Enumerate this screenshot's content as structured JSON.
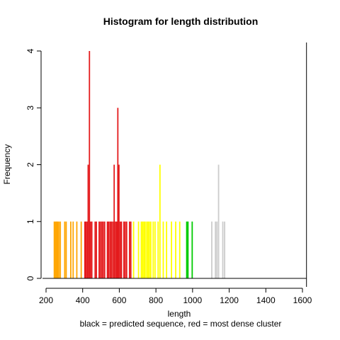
{
  "chart_data": {
    "type": "bar",
    "title": "Histogram for length distribution",
    "xlabel": "length",
    "ylabel": "Frequency",
    "subtitle": "black = predicted sequence, red = most dense cluster",
    "xlim": [
      200,
      1600
    ],
    "ylim": [
      0,
      4
    ],
    "x_ticks": [
      200,
      400,
      600,
      800,
      1000,
      1200,
      1400,
      1600
    ],
    "y_ticks": [
      0,
      1,
      2,
      3,
      4
    ],
    "colors": {
      "red": "#e41a1c",
      "orange": "#ffa500",
      "yellow": "#ffff00",
      "green": "#00cc00",
      "gray": "#cccccc",
      "black": "#000000"
    },
    "bars": [
      {
        "x": 245,
        "count": 1,
        "color": "orange"
      },
      {
        "x": 252,
        "count": 1,
        "color": "orange"
      },
      {
        "x": 258,
        "count": 1,
        "color": "orange"
      },
      {
        "x": 263,
        "count": 1,
        "color": "orange"
      },
      {
        "x": 270,
        "count": 1,
        "color": "orange"
      },
      {
        "x": 278,
        "count": 1,
        "color": "orange"
      },
      {
        "x": 302,
        "count": 1,
        "color": "orange"
      },
      {
        "x": 310,
        "count": 1,
        "color": "orange"
      },
      {
        "x": 335,
        "count": 1,
        "color": "orange"
      },
      {
        "x": 348,
        "count": 1,
        "color": "orange"
      },
      {
        "x": 368,
        "count": 1,
        "color": "orange"
      },
      {
        "x": 392,
        "count": 1,
        "color": "orange"
      },
      {
        "x": 412,
        "count": 1,
        "color": "red"
      },
      {
        "x": 418,
        "count": 1,
        "color": "red"
      },
      {
        "x": 425,
        "count": 1,
        "color": "red"
      },
      {
        "x": 430,
        "count": 2,
        "color": "red"
      },
      {
        "x": 437,
        "count": 4,
        "color": "red"
      },
      {
        "x": 443,
        "count": 1,
        "color": "red"
      },
      {
        "x": 450,
        "count": 1,
        "color": "red"
      },
      {
        "x": 468,
        "count": 1,
        "color": "red"
      },
      {
        "x": 475,
        "count": 1,
        "color": "red"
      },
      {
        "x": 490,
        "count": 1,
        "color": "red"
      },
      {
        "x": 497,
        "count": 1,
        "color": "red"
      },
      {
        "x": 505,
        "count": 1,
        "color": "red"
      },
      {
        "x": 512,
        "count": 1,
        "color": "red"
      },
      {
        "x": 520,
        "count": 1,
        "color": "red"
      },
      {
        "x": 535,
        "count": 1,
        "color": "red"
      },
      {
        "x": 542,
        "count": 1,
        "color": "red"
      },
      {
        "x": 550,
        "count": 1,
        "color": "red"
      },
      {
        "x": 557,
        "count": 1,
        "color": "red"
      },
      {
        "x": 565,
        "count": 1,
        "color": "red"
      },
      {
        "x": 572,
        "count": 2,
        "color": "red"
      },
      {
        "x": 579,
        "count": 1,
        "color": "red"
      },
      {
        "x": 586,
        "count": 1,
        "color": "red"
      },
      {
        "x": 592,
        "count": 3,
        "color": "red"
      },
      {
        "x": 598,
        "count": 2,
        "color": "red"
      },
      {
        "x": 605,
        "count": 1,
        "color": "red"
      },
      {
        "x": 612,
        "count": 1,
        "color": "red"
      },
      {
        "x": 625,
        "count": 1,
        "color": "red"
      },
      {
        "x": 632,
        "count": 1,
        "color": "red"
      },
      {
        "x": 640,
        "count": 1,
        "color": "red"
      },
      {
        "x": 656,
        "count": 1,
        "color": "red"
      },
      {
        "x": 663,
        "count": 1,
        "color": "red"
      },
      {
        "x": 678,
        "count": 1,
        "color": "yellow"
      },
      {
        "x": 705,
        "count": 1,
        "color": "yellow"
      },
      {
        "x": 720,
        "count": 1,
        "color": "yellow"
      },
      {
        "x": 727,
        "count": 1,
        "color": "yellow"
      },
      {
        "x": 734,
        "count": 1,
        "color": "yellow"
      },
      {
        "x": 741,
        "count": 1,
        "color": "yellow"
      },
      {
        "x": 750,
        "count": 1,
        "color": "yellow"
      },
      {
        "x": 757,
        "count": 1,
        "color": "yellow"
      },
      {
        "x": 764,
        "count": 1,
        "color": "yellow"
      },
      {
        "x": 772,
        "count": 1,
        "color": "yellow"
      },
      {
        "x": 785,
        "count": 1,
        "color": "yellow"
      },
      {
        "x": 795,
        "count": 1,
        "color": "yellow"
      },
      {
        "x": 812,
        "count": 1,
        "color": "yellow"
      },
      {
        "x": 822,
        "count": 2,
        "color": "yellow"
      },
      {
        "x": 840,
        "count": 1,
        "color": "yellow"
      },
      {
        "x": 858,
        "count": 1,
        "color": "yellow"
      },
      {
        "x": 885,
        "count": 1,
        "color": "yellow"
      },
      {
        "x": 908,
        "count": 1,
        "color": "yellow"
      },
      {
        "x": 930,
        "count": 1,
        "color": "yellow"
      },
      {
        "x": 968,
        "count": 1,
        "color": "green"
      },
      {
        "x": 975,
        "count": 1,
        "color": "green"
      },
      {
        "x": 998,
        "count": 1,
        "color": "green"
      },
      {
        "x": 1105,
        "count": 1,
        "color": "gray"
      },
      {
        "x": 1125,
        "count": 1,
        "color": "gray"
      },
      {
        "x": 1133,
        "count": 1,
        "color": "gray"
      },
      {
        "x": 1142,
        "count": 2,
        "color": "gray"
      },
      {
        "x": 1165,
        "count": 1,
        "color": "gray"
      },
      {
        "x": 1175,
        "count": 1,
        "color": "gray"
      }
    ],
    "reference_line": {
      "x": 1622,
      "color": "black"
    }
  }
}
